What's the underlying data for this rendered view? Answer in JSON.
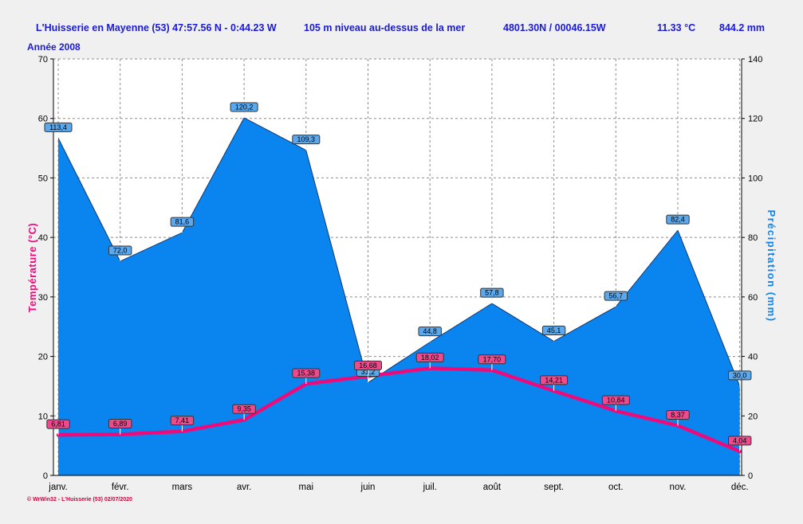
{
  "header": {
    "location": "L'Huisserie en Mayenne (53) 47:57.56 N - 0:44.23 W",
    "altitude": "105 m niveau au-dessus de la mer",
    "coords": "4801.30N / 00046.15W",
    "avg_temp": "11.33 °C",
    "total_precip": "844.2 mm",
    "year": "Année  2008"
  },
  "footer": "© WrWin32 - L'Huisserie (53)  02/07/2020",
  "chart_data": {
    "type": "area",
    "categories": [
      "janv.",
      "févr.",
      "mars",
      "avr.",
      "mai",
      "juin",
      "juil.",
      "août",
      "sept.",
      "oct.",
      "nov.",
      "déc."
    ],
    "ylabel_left": "Température  (°C)",
    "ylabel_right": "Précipitation  (mm)",
    "ylim_left": [
      0,
      70
    ],
    "ylim_right": [
      0,
      140
    ],
    "yticks_left": [
      0,
      10,
      20,
      30,
      40,
      50,
      60,
      70
    ],
    "yticks_right": [
      0,
      20,
      40,
      60,
      80,
      100,
      120,
      140
    ],
    "grid": true,
    "series": [
      {
        "name": "Précipitation",
        "type": "area",
        "axis": "right",
        "color": "#0a84ee",
        "values": [
          113.4,
          72.0,
          81.6,
          120.2,
          109.3,
          31.2,
          44.8,
          57.8,
          45.1,
          56.7,
          82.4,
          30.0
        ],
        "labels": [
          "113,4",
          "72,0",
          "81,6",
          "120,2",
          "109,3",
          "31,2",
          "44,8",
          "57,8",
          "45,1",
          "56,7",
          "82,4",
          "30,0"
        ]
      },
      {
        "name": "Température",
        "type": "line",
        "axis": "left",
        "color": "#ee0a7a",
        "values": [
          6.81,
          6.89,
          7.41,
          9.35,
          15.38,
          16.68,
          18.02,
          17.7,
          14.21,
          10.84,
          8.37,
          4.04
        ],
        "labels": [
          "6,81",
          "6,89",
          "7,41",
          "9,35",
          "15,38",
          "16,68",
          "18,02",
          "17,70",
          "14,21",
          "10,84",
          "8,37",
          "4,04"
        ]
      }
    ]
  }
}
